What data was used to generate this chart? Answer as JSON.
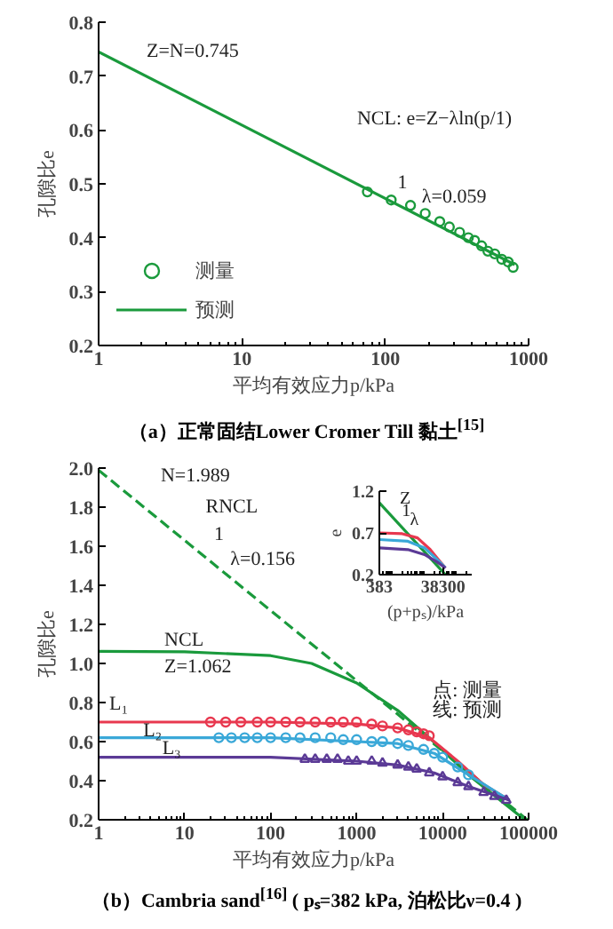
{
  "chart_data": [
    {
      "type": "line",
      "title": "（a）正常固结Lower Cromer Till 黏土$^{[15]}$",
      "xlabel": "平均有效应力p/kPa",
      "ylabel": "孔隙比e",
      "log": "x",
      "xlim": [
        1,
        1000
      ],
      "xticks": [
        1,
        10,
        100,
        1000
      ],
      "ylim": [
        0.2,
        0.8
      ],
      "yticks": [
        0.2,
        0.3,
        0.4,
        0.5,
        0.6,
        0.7,
        0.8
      ],
      "legend": "bottom left",
      "grid": false,
      "series": [
        {
          "name": "测量",
          "type": "scatter",
          "marker": "circle",
          "color": "#1a9a3c",
          "x": [
            75,
            110,
            150,
            190,
            240,
            280,
            330,
            380,
            420,
            470,
            520,
            580,
            650,
            720,
            780
          ],
          "values": [
            0.485,
            0.47,
            0.46,
            0.445,
            0.43,
            0.42,
            0.41,
            0.4,
            0.395,
            0.385,
            0.375,
            0.37,
            0.36,
            0.355,
            0.345
          ]
        },
        {
          "name": "预测",
          "line_style": "solid",
          "color": "#1a9a3c",
          "x": [
            1,
            800
          ],
          "values": [
            0.745,
            0.35
          ]
        }
      ],
      "annotations": [
        {
          "text": "Z=N=0.745",
          "x": 1,
          "y": 0.745
        },
        "NCL: e=Z−λln(p/1)",
        "1",
        "λ=0.059"
      ]
    },
    {
      "type": "line",
      "title": "（b）Cambria sand$^{[16]}$ ( pₛ=382 kPa, 泊松比ν=0.4 )",
      "xlabel": "平均有效应力p/kPa",
      "ylabel": "孔隙比e",
      "log": "x",
      "xlim": [
        1,
        100000
      ],
      "xticks": [
        1,
        10,
        100,
        1000,
        10000,
        100000
      ],
      "ylim": [
        0.2,
        2.0
      ],
      "yticks": [
        0.2,
        0.4,
        0.6,
        0.8,
        {
          "value": 1,
          "label": "1.0"
        },
        1.2,
        1.4,
        1.6,
        1.8,
        {
          "value": 2,
          "label": "2.0"
        }
      ],
      "grid": false,
      "series": [
        {
          "line_style": "dashed",
          "color": "#1a9a3c",
          "x": [
            1,
            96000
          ],
          "values": [
            1.989,
            0.2
          ]
        },
        {
          "line_style": "solid",
          "color": "#1a9a3c",
          "x": [
            1,
            10,
            100,
            300,
            1000,
            3000,
            7000,
            20000,
            90000
          ],
          "values": [
            1.062,
            1.06,
            1.04,
            1.0,
            0.9,
            0.76,
            0.62,
            0.43,
            0.2
          ]
        },
        {
          "line_style": "solid",
          "color": "#e8384f",
          "x": [
            1,
            100,
            1000,
            3000,
            7000,
            15000,
            30000,
            60000
          ],
          "values": [
            0.7,
            0.7,
            0.69,
            0.67,
            0.62,
            0.5,
            0.38,
            0.3
          ]
        },
        {
          "line_style": "solid",
          "color": "#3aa8d8",
          "x": [
            1,
            100,
            1000,
            3000,
            8000,
            20000,
            60000
          ],
          "values": [
            0.62,
            0.62,
            0.6,
            0.59,
            0.54,
            0.43,
            0.3
          ]
        },
        {
          "line_style": "solid",
          "color": "#5b3a96",
          "x": [
            1,
            100,
            1000,
            3000,
            8000,
            20000,
            60000
          ],
          "values": [
            0.52,
            0.52,
            0.5,
            0.48,
            0.44,
            0.37,
            0.3
          ]
        },
        {
          "type": "scatter",
          "marker": "circle",
          "color": "#e8384f",
          "x": [
            20,
            30,
            45,
            70,
            100,
            150,
            220,
            330,
            500,
            700,
            1000,
            1500,
            2000,
            3000,
            4000,
            5000,
            6000,
            7000
          ],
          "values": [
            0.7,
            0.7,
            0.7,
            0.7,
            0.7,
            0.7,
            0.7,
            0.7,
            0.7,
            0.7,
            0.7,
            0.69,
            0.68,
            0.67,
            0.66,
            0.65,
            0.64,
            0.63
          ]
        },
        {
          "type": "scatter",
          "marker": "circle",
          "color": "#3aa8d8",
          "x": [
            25,
            35,
            50,
            70,
            100,
            150,
            220,
            330,
            500,
            700,
            1000,
            1500,
            2000,
            3000,
            4000,
            6000,
            8000,
            10000,
            15000,
            20000
          ],
          "values": [
            0.62,
            0.62,
            0.62,
            0.62,
            0.62,
            0.62,
            0.62,
            0.62,
            0.62,
            0.61,
            0.61,
            0.6,
            0.6,
            0.59,
            0.58,
            0.56,
            0.54,
            0.52,
            0.47,
            0.43
          ]
        },
        {
          "type": "scatter",
          "marker": "triangle",
          "color": "#5b3a96",
          "x": [
            250,
            330,
            450,
            600,
            800,
            1000,
            1500,
            2000,
            3000,
            4000,
            5000,
            7000,
            10000,
            15000,
            20000,
            30000,
            40000,
            55000
          ],
          "values": [
            0.51,
            0.51,
            0.51,
            0.51,
            0.5,
            0.5,
            0.5,
            0.49,
            0.48,
            0.47,
            0.46,
            0.44,
            0.42,
            0.39,
            0.37,
            0.34,
            0.32,
            0.3
          ]
        }
      ],
      "annotations": [
        "N=1.989",
        "RNCL",
        "1",
        "λ=0.156",
        "NCL",
        "Z=1.062",
        {
          "text": "L₁",
          "x": 1,
          "y": 0.7
        },
        {
          "text": "L₂",
          "x": 3,
          "y": 0.62
        },
        {
          "text": "L₃",
          "x": 5,
          "y": 0.52
        },
        "点: 测量",
        "线: 预测"
      ]
    },
    {
      "type": "line",
      "xlabel": "(p+pₛ)/kPa",
      "ylabel": "e",
      "log": "x",
      "xlim": [
        383,
        300000
      ],
      "xticks": [
        383,
        38300
      ],
      "ylim": [
        0.2,
        1.2
      ],
      "yticks": [
        0.2,
        0.7,
        1.2
      ],
      "grid": false,
      "series": [
        {
          "line_style": "solid",
          "color": "#1a9a3c",
          "x": [
            383,
            45000
          ],
          "values": [
            1.06,
            0.2
          ]
        },
        {
          "line_style": "solid",
          "color": "#e8384f",
          "x": [
            383,
            2000,
            6000,
            15000,
            30000,
            45000
          ],
          "values": [
            0.7,
            0.69,
            0.64,
            0.5,
            0.36,
            0.28
          ]
        },
        {
          "line_style": "solid",
          "color": "#3aa8d8",
          "x": [
            383,
            3000,
            10000,
            25000,
            45000
          ],
          "values": [
            0.62,
            0.6,
            0.52,
            0.38,
            0.28
          ]
        },
        {
          "line_style": "solid",
          "color": "#5b3a96",
          "x": [
            383,
            3000,
            10000,
            25000,
            45000
          ],
          "values": [
            0.52,
            0.5,
            0.44,
            0.35,
            0.28
          ]
        }
      ],
      "annotations": [
        "Z",
        "1",
        "λ"
      ]
    }
  ]
}
